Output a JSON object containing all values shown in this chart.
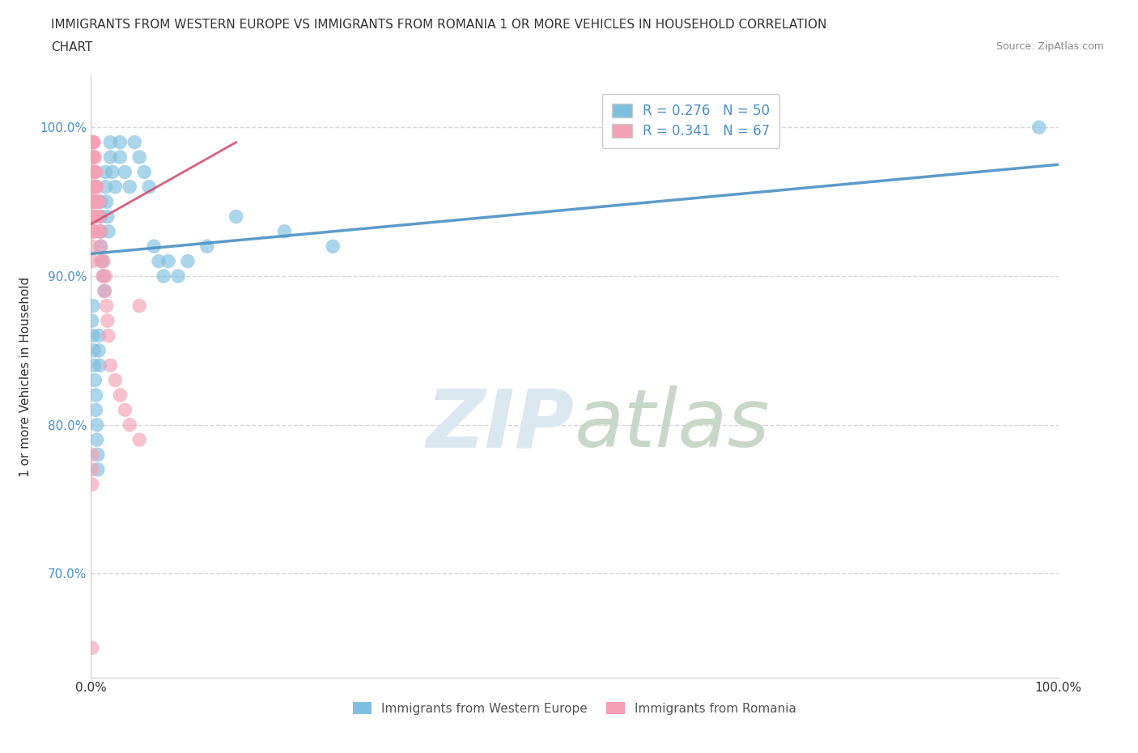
{
  "title_line1": "IMMIGRANTS FROM WESTERN EUROPE VS IMMIGRANTS FROM ROMANIA 1 OR MORE VEHICLES IN HOUSEHOLD CORRELATION",
  "title_line2": "CHART",
  "source": "Source: ZipAtlas.com",
  "ylabel": "1 or more Vehicles in Household",
  "xmin": 0.0,
  "xmax": 1.0,
  "ymin": 0.63,
  "ymax": 1.035,
  "blue_color": "#7fbfdf",
  "pink_color": "#f4a0b5",
  "blue_line_color": "#4a90c4",
  "pink_line_color": "#d45070",
  "legend_text_color": "#4a90c4",
  "watermark_color": "#dce8f0",
  "grid_color": "#cccccc",
  "R_blue": 0.276,
  "N_blue": 50,
  "R_pink": 0.341,
  "N_pink": 67,
  "blue_x": [
    0.001,
    0.002,
    0.002,
    0.003,
    0.003,
    0.004,
    0.005,
    0.005,
    0.006,
    0.006,
    0.007,
    0.007,
    0.008,
    0.008,
    0.009,
    0.01,
    0.01,
    0.01,
    0.01,
    0.012,
    0.013,
    0.014,
    0.015,
    0.015,
    0.016,
    0.017,
    0.018,
    0.02,
    0.02,
    0.022,
    0.025,
    0.03,
    0.03,
    0.035,
    0.04,
    0.045,
    0.05,
    0.055,
    0.06,
    0.065,
    0.07,
    0.075,
    0.08,
    0.09,
    0.1,
    0.12,
    0.15,
    0.2,
    0.25,
    0.98
  ],
  "blue_y": [
    0.87,
    0.88,
    0.86,
    0.85,
    0.84,
    0.83,
    0.82,
    0.81,
    0.8,
    0.79,
    0.78,
    0.77,
    0.86,
    0.85,
    0.84,
    0.95,
    0.94,
    0.93,
    0.92,
    0.91,
    0.9,
    0.89,
    0.97,
    0.96,
    0.95,
    0.94,
    0.93,
    0.99,
    0.98,
    0.97,
    0.96,
    0.99,
    0.98,
    0.97,
    0.96,
    0.99,
    0.98,
    0.97,
    0.96,
    0.92,
    0.91,
    0.9,
    0.91,
    0.9,
    0.91,
    0.92,
    0.94,
    0.93,
    0.92,
    1.0
  ],
  "pink_x": [
    0.001,
    0.001,
    0.001,
    0.001,
    0.001,
    0.001,
    0.001,
    0.001,
    0.001,
    0.001,
    0.001,
    0.001,
    0.001,
    0.001,
    0.001,
    0.002,
    0.002,
    0.002,
    0.002,
    0.002,
    0.002,
    0.002,
    0.002,
    0.002,
    0.002,
    0.003,
    0.003,
    0.003,
    0.003,
    0.003,
    0.003,
    0.003,
    0.004,
    0.004,
    0.004,
    0.004,
    0.005,
    0.005,
    0.005,
    0.006,
    0.006,
    0.007,
    0.007,
    0.008,
    0.008,
    0.009,
    0.01,
    0.01,
    0.01,
    0.012,
    0.013,
    0.014,
    0.015,
    0.016,
    0.017,
    0.018,
    0.02,
    0.025,
    0.03,
    0.035,
    0.04,
    0.05,
    0.001,
    0.001,
    0.001,
    0.001,
    0.05
  ],
  "pink_y": [
    0.99,
    0.99,
    0.98,
    0.98,
    0.97,
    0.97,
    0.96,
    0.96,
    0.95,
    0.95,
    0.94,
    0.94,
    0.93,
    0.92,
    0.91,
    0.99,
    0.99,
    0.98,
    0.97,
    0.97,
    0.96,
    0.95,
    0.94,
    0.93,
    0.93,
    0.99,
    0.98,
    0.97,
    0.96,
    0.95,
    0.94,
    0.93,
    0.98,
    0.97,
    0.96,
    0.95,
    0.97,
    0.96,
    0.95,
    0.96,
    0.95,
    0.95,
    0.94,
    0.95,
    0.93,
    0.94,
    0.93,
    0.91,
    0.92,
    0.9,
    0.91,
    0.89,
    0.9,
    0.88,
    0.87,
    0.86,
    0.84,
    0.83,
    0.82,
    0.81,
    0.8,
    0.79,
    0.78,
    0.77,
    0.76,
    0.65,
    0.88
  ],
  "yticks": [
    0.7,
    0.8,
    0.9,
    1.0
  ],
  "ytick_labels": [
    "70.0%",
    "80.0%",
    "90.0%",
    "100.0%"
  ],
  "xticks": [
    0.0,
    0.25,
    0.5,
    0.75,
    1.0
  ],
  "xtick_labels": [
    "0.0%",
    "",
    "",
    "",
    "100.0%"
  ]
}
